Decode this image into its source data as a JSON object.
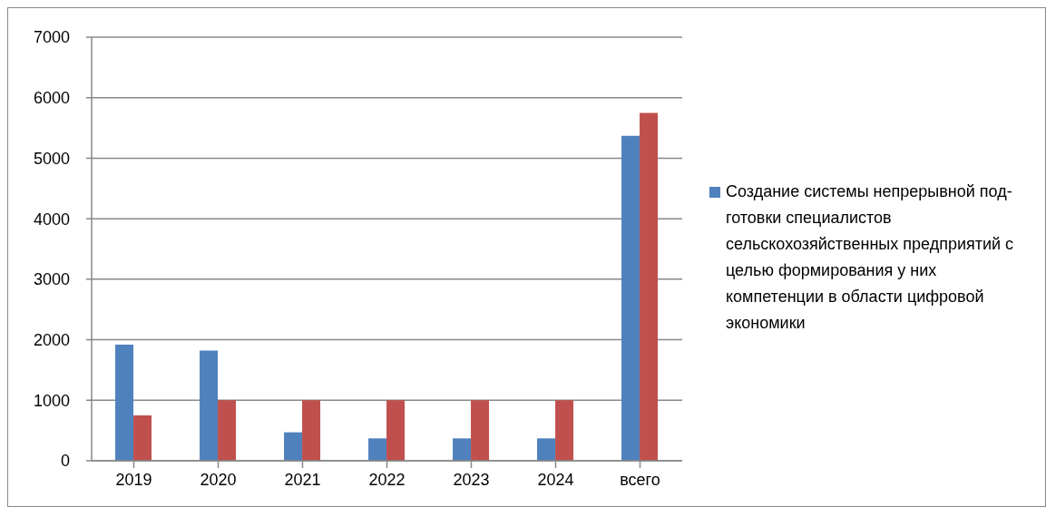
{
  "chart_data": {
    "type": "bar",
    "categories": [
      "2019",
      "2020",
      "2021",
      "2022",
      "2023",
      "2024",
      "всего"
    ],
    "series": [
      {
        "name": "Создание системы непрерывной под-готовки специалистов сельскохозяйственных предприятий с целью формирования у них компетенции в области цифровой экономики",
        "color": "#4f81bd",
        "values": [
          1920,
          1820,
          470,
          370,
          370,
          370,
          5370
        ]
      },
      {
        "color": "#c0504d",
        "values": [
          750,
          1000,
          1000,
          1000,
          1000,
          1000,
          5750
        ]
      }
    ],
    "ylim": [
      0,
      7000
    ],
    "yticks": [
      0,
      1000,
      2000,
      3000,
      4000,
      5000,
      6000,
      7000
    ],
    "grid": "y",
    "legend": "right"
  }
}
